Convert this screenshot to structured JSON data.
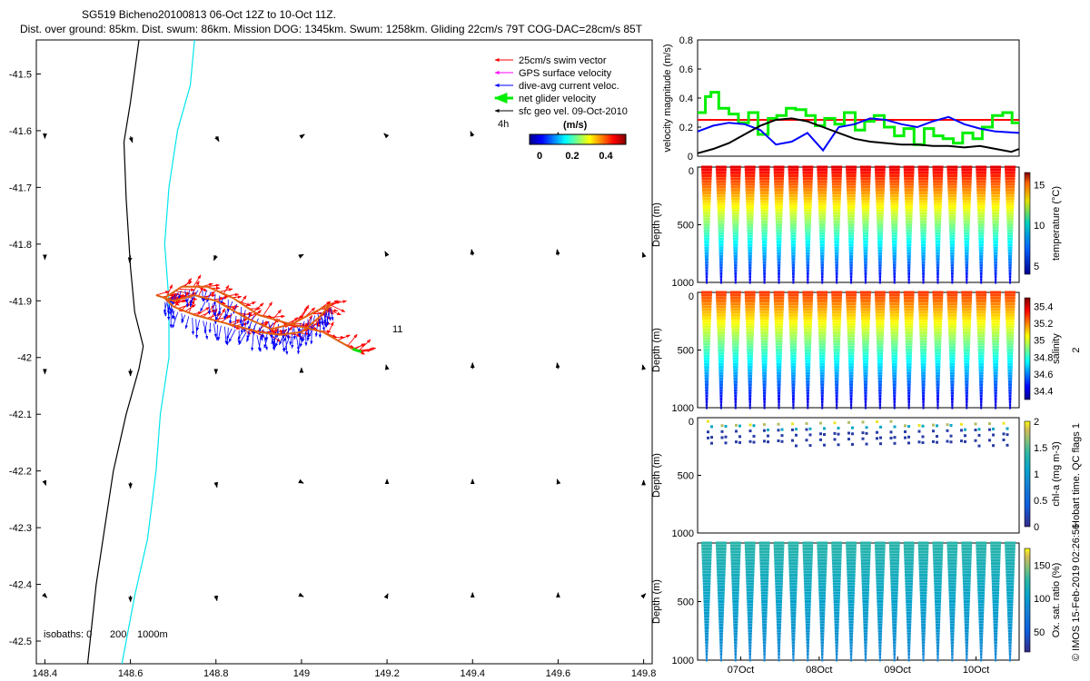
{
  "header": {
    "title_line1": "SG519 Bicheno20100813 06-Oct 12Z to 10-Oct 11Z.",
    "title_line2": "Dist. over ground: 85km. Dist. swum: 86km. Mission DOG: 1345km. Swum: 1258km. Gliding 22cm/s 79T COG-DAC=28cm/s 85T"
  },
  "colors": {
    "swim": "#ff0000",
    "gps": "#ff00ff",
    "dive_avg": "#0000ff",
    "net": "#00ee00",
    "sfc": "#000000",
    "coast": "#000000",
    "isobath": "#00e5ee"
  },
  "chart_data": [
    {
      "type": "scatter",
      "name": "map",
      "title": "Glider track quiver map",
      "xlabel": "",
      "ylabel": "",
      "xlim": [
        148.38,
        149.82
      ],
      "ylim": [
        -42.54,
        -41.44
      ],
      "x_ticks": [
        "148.4",
        "148.6",
        "148.8",
        "149",
        "149.2",
        "149.4",
        "149.6",
        "149.8"
      ],
      "y_ticks": [
        "-41.5",
        "-41.6",
        "-41.7",
        "-41.8",
        "-41.9",
        "-42",
        "-42.1",
        "-42.2",
        "-42.3",
        "-42.4",
        "-42.5"
      ],
      "legend": [
        "25cm/s swim vector",
        "GPS surface velocity",
        "dive-avg current veloc.",
        "net glider velocity",
        "sfc geo vel. 09-Oct-2010"
      ],
      "legend_note": "4h",
      "colorbar_label": "(m/s)",
      "colorbar_ticks": [
        "0",
        "0.2",
        "0.4"
      ],
      "annotation": "11",
      "isobaths_label": "isobaths: 0",
      "isobaths_values": [
        "200",
        "1000m"
      ],
      "track": [
        [
          148.66,
          -41.89
        ],
        [
          148.7,
          -41.9
        ],
        [
          148.75,
          -41.89
        ],
        [
          148.8,
          -41.9
        ],
        [
          148.87,
          -41.93
        ],
        [
          148.93,
          -41.95
        ],
        [
          148.98,
          -41.94
        ],
        [
          149.03,
          -41.92
        ],
        [
          149.07,
          -41.905
        ],
        [
          149.04,
          -41.93
        ],
        [
          149.0,
          -41.955
        ],
        [
          148.95,
          -41.96
        ],
        [
          148.9,
          -41.955
        ],
        [
          148.85,
          -41.945
        ],
        [
          148.8,
          -41.935
        ],
        [
          148.75,
          -41.925
        ],
        [
          148.7,
          -41.91
        ],
        [
          148.68,
          -41.895
        ],
        [
          148.72,
          -41.875
        ],
        [
          148.78,
          -41.875
        ],
        [
          148.84,
          -41.895
        ],
        [
          148.9,
          -41.925
        ],
        [
          148.97,
          -41.94
        ],
        [
          149.05,
          -41.955
        ],
        [
          149.12,
          -41.985
        ],
        [
          149.14,
          -41.99
        ]
      ],
      "coastline": [
        [
          148.5,
          -42.54
        ],
        [
          148.52,
          -42.4
        ],
        [
          148.54,
          -42.3
        ],
        [
          148.56,
          -42.2
        ],
        [
          148.59,
          -42.1
        ],
        [
          148.62,
          -42.02
        ],
        [
          148.63,
          -41.98
        ],
        [
          148.61,
          -41.92
        ],
        [
          148.6,
          -41.84
        ],
        [
          148.59,
          -41.72
        ],
        [
          148.585,
          -41.62
        ],
        [
          148.6,
          -41.55
        ],
        [
          148.62,
          -41.44
        ]
      ],
      "isobath": [
        [
          148.58,
          -42.54
        ],
        [
          148.61,
          -42.42
        ],
        [
          148.64,
          -42.32
        ],
        [
          148.66,
          -42.2
        ],
        [
          148.67,
          -42.1
        ],
        [
          148.69,
          -42.0
        ],
        [
          148.69,
          -41.9
        ],
        [
          148.68,
          -41.8
        ],
        [
          148.69,
          -41.7
        ],
        [
          148.71,
          -41.6
        ],
        [
          148.74,
          -41.52
        ],
        [
          148.75,
          -41.44
        ]
      ],
      "sfc_vectors": [
        [
          148.4,
          -41.61,
          0.0,
          -0.02
        ],
        [
          148.6,
          -41.61,
          0.02,
          -0.06
        ],
        [
          148.8,
          -41.61,
          0.03,
          -0.05
        ],
        [
          149.0,
          -41.61,
          0.03,
          0.02
        ],
        [
          149.2,
          -41.61,
          -0.03,
          0.03
        ],
        [
          149.4,
          -41.61,
          -0.02,
          0.05
        ],
        [
          149.6,
          -41.61,
          0.0,
          0.04
        ],
        [
          148.4,
          -41.82,
          0.0,
          -0.04
        ],
        [
          148.6,
          -41.82,
          -0.01,
          -0.07
        ],
        [
          148.8,
          -41.82,
          -0.02,
          -0.05
        ],
        [
          149.0,
          -41.82,
          0.02,
          0.01
        ],
        [
          149.2,
          -41.82,
          -0.02,
          0.04
        ],
        [
          149.4,
          -41.82,
          -0.01,
          0.06
        ],
        [
          149.6,
          -41.82,
          -0.01,
          0.06
        ],
        [
          149.8,
          -41.82,
          -0.01,
          0.03
        ],
        [
          148.4,
          -42.02,
          0.0,
          -0.05
        ],
        [
          148.6,
          -42.02,
          0.0,
          -0.07
        ],
        [
          148.8,
          -42.02,
          0.0,
          -0.05
        ],
        [
          149.0,
          -42.02,
          0.0,
          0.01
        ],
        [
          149.2,
          -42.02,
          -0.01,
          0.04
        ],
        [
          149.4,
          -42.02,
          0.0,
          0.06
        ],
        [
          149.6,
          -42.02,
          -0.01,
          0.06
        ],
        [
          149.8,
          -42.02,
          -0.01,
          0.04
        ],
        [
          148.4,
          -42.22,
          0.01,
          -0.03
        ],
        [
          148.6,
          -42.22,
          0.0,
          -0.06
        ],
        [
          148.8,
          -42.22,
          0.01,
          -0.05
        ],
        [
          149.0,
          -42.22,
          0.02,
          -0.01
        ],
        [
          149.2,
          -42.22,
          0.0,
          0.03
        ],
        [
          149.4,
          -42.22,
          0.0,
          0.03
        ],
        [
          149.6,
          -42.22,
          -0.01,
          0.03
        ],
        [
          149.8,
          -42.22,
          0.0,
          0.02
        ],
        [
          148.4,
          -42.42,
          0.02,
          -0.02
        ],
        [
          148.6,
          -42.42,
          0.0,
          -0.06
        ],
        [
          148.8,
          -42.42,
          0.01,
          -0.05
        ],
        [
          149.0,
          -42.42,
          0.02,
          -0.01
        ],
        [
          149.2,
          -42.42,
          0.01,
          0.02
        ],
        [
          149.4,
          -42.42,
          0.0,
          0.03
        ],
        [
          149.6,
          -42.42,
          0.0,
          0.03
        ],
        [
          149.8,
          -42.42,
          0.02,
          0.02
        ]
      ]
    },
    {
      "type": "line",
      "name": "velocity",
      "ylabel": "velocity magnitude (m/s)",
      "ylim": [
        0,
        0.8
      ],
      "y_ticks": [
        "0",
        "0.2",
        "0.4",
        "0.6",
        "0.8"
      ],
      "x_range": [
        6.45,
        10.55
      ],
      "series": [
        {
          "name": "red reference",
          "color": "#ff0000",
          "x": [
            6.45,
            10.55
          ],
          "y": [
            0.25,
            0.25
          ]
        },
        {
          "name": "green net",
          "color": "#00ee00",
          "step": true,
          "x": [
            6.45,
            6.55,
            6.62,
            6.72,
            6.85,
            6.97,
            7.1,
            7.22,
            7.35,
            7.46,
            7.58,
            7.7,
            7.83,
            7.95,
            8.07,
            8.2,
            8.32,
            8.46,
            8.58,
            8.7,
            8.83,
            8.96,
            9.08,
            9.21,
            9.34,
            9.46,
            9.58,
            9.71,
            9.83,
            9.96,
            10.08,
            10.21,
            10.34,
            10.46
          ],
          "y": [
            0.3,
            0.41,
            0.44,
            0.33,
            0.29,
            0.23,
            0.3,
            0.15,
            0.26,
            0.28,
            0.33,
            0.32,
            0.28,
            0.21,
            0.26,
            0.22,
            0.3,
            0.18,
            0.24,
            0.28,
            0.2,
            0.14,
            0.19,
            0.08,
            0.19,
            0.14,
            0.12,
            0.09,
            0.16,
            0.12,
            0.2,
            0.28,
            0.3,
            0.23
          ]
        },
        {
          "name": "blue dive-avg",
          "color": "#0000ff",
          "x": [
            6.45,
            6.65,
            6.85,
            7.05,
            7.25,
            7.45,
            7.65,
            7.85,
            8.05,
            8.25,
            8.45,
            8.65,
            8.85,
            9.05,
            9.25,
            9.45,
            9.65,
            9.85,
            10.05,
            10.25,
            10.55
          ],
          "y": [
            0.17,
            0.21,
            0.23,
            0.22,
            0.18,
            0.08,
            0.1,
            0.16,
            0.04,
            0.2,
            0.22,
            0.26,
            0.25,
            0.22,
            0.2,
            0.24,
            0.27,
            0.22,
            0.19,
            0.17,
            0.16
          ]
        },
        {
          "name": "black sfc",
          "color": "#000000",
          "x": [
            6.45,
            6.65,
            6.85,
            7.05,
            7.25,
            7.45,
            7.65,
            7.85,
            8.05,
            8.25,
            8.45,
            8.65,
            8.85,
            9.05,
            9.25,
            9.45,
            9.65,
            9.85,
            10.05,
            10.25,
            10.45,
            10.55
          ],
          "y": [
            0.02,
            0.05,
            0.09,
            0.15,
            0.21,
            0.25,
            0.26,
            0.24,
            0.2,
            0.16,
            0.12,
            0.1,
            0.09,
            0.08,
            0.08,
            0.07,
            0.07,
            0.06,
            0.07,
            0.05,
            0.03,
            0.05
          ]
        }
      ]
    },
    {
      "type": "scatter",
      "name": "temperature",
      "ylabel": "Depth (m)",
      "y_ticks": [
        "0",
        "500",
        "1000"
      ],
      "ylim": [
        0,
        1000
      ],
      "colorbar_label": "temperature (°C)",
      "colorbar_ticks": [
        "5",
        "10",
        "15"
      ],
      "clim": [
        4,
        16.5
      ],
      "n_dives": 22,
      "surface_value": 15.5,
      "deep_value": 4.5
    },
    {
      "type": "scatter",
      "name": "salinity",
      "ylabel": "Depth (m)",
      "y_ticks": [
        "0",
        "500",
        "1000"
      ],
      "ylim": [
        0,
        1000
      ],
      "colorbar_label": "salinity",
      "colorbar_ticks": [
        "34.4",
        "34.6",
        "34.8",
        "35",
        "35.2",
        "35.4"
      ],
      "clim": [
        34.3,
        35.5
      ],
      "side_label": "2",
      "n_dives": 22
    },
    {
      "type": "scatter",
      "name": "chlorophyll",
      "ylabel": "Depth (m)",
      "y_ticks": [
        "0",
        "500",
        "1000"
      ],
      "ylim": [
        0,
        1000
      ],
      "colorbar_label": "chl-a (mg m-3)",
      "colorbar_ticks": [
        "0",
        "0.5",
        "1",
        "1.5",
        "2"
      ],
      "clim": [
        0,
        2
      ],
      "side_label": "Hobart time. QC flags 1"
    },
    {
      "type": "scatter",
      "name": "oxygen",
      "ylabel": "Depth (m)",
      "y_ticks": [
        "500",
        "1000"
      ],
      "ylim": [
        0,
        1000
      ],
      "colorbar_label": "Ox. sat. ratio (%)",
      "colorbar_ticks": [
        "50",
        "100",
        "150"
      ],
      "clim": [
        20,
        175
      ],
      "x_ticks": [
        "07Oct",
        "08Oct",
        "09Oct",
        "10Oct"
      ],
      "n_dives": 22
    }
  ],
  "footer": {
    "credit": "© IMOS 15-Feb-2019 02:26:56"
  }
}
